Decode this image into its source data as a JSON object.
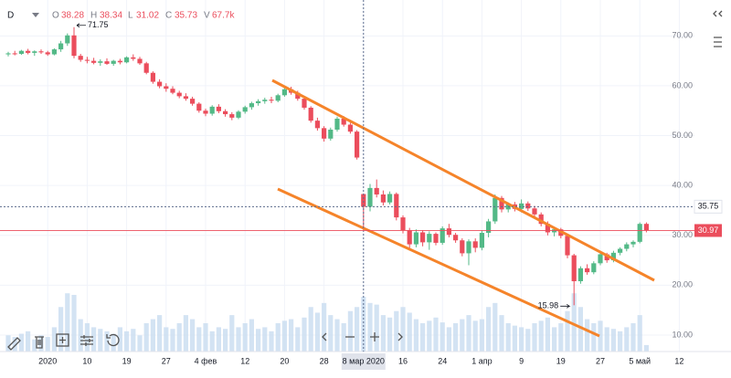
{
  "chart_data": {
    "type": "candlestick",
    "ohlc_header": {
      "symbol": "D",
      "open_label": "O",
      "open": 38.28,
      "high_label": "H",
      "high": 38.34,
      "low_label": "L",
      "low": 31.02,
      "close_label": "C",
      "close": 35.73,
      "volume_label": "V",
      "volume": {
        "value": 67.7,
        "label": "67.7k"
      }
    },
    "categories": [
      null,
      null,
      null,
      null,
      null,
      null,
      "2020",
      null,
      null,
      null,
      null,
      null,
      "10",
      null,
      null,
      null,
      null,
      null,
      "19",
      null,
      null,
      null,
      null,
      null,
      "27",
      null,
      null,
      null,
      null,
      null,
      "4 фев",
      null,
      null,
      null,
      null,
      null,
      "12",
      null,
      null,
      null,
      null,
      null,
      "20",
      null,
      null,
      null,
      null,
      null,
      "28",
      null,
      null,
      null,
      null,
      null,
      "8 мар 2020",
      null,
      null,
      null,
      null,
      null,
      "16",
      null,
      null,
      null,
      null,
      null,
      "24",
      null,
      null,
      null,
      null,
      null,
      "1 апр",
      null,
      null,
      null,
      null,
      null,
      "9",
      null,
      null,
      null,
      null,
      null,
      "19",
      null,
      null,
      null,
      null,
      null,
      "27",
      null,
      null,
      null,
      null,
      null,
      "5 май",
      null,
      null,
      null,
      null,
      null,
      "12"
    ],
    "open": [
      66.3,
      66.5,
      66.4,
      67.0,
      66.6,
      66.9,
      66.7,
      66.3,
      67.3,
      68.5,
      70.1,
      66.0,
      65.2,
      65.0,
      64.6,
      64.9,
      64.4,
      65.0,
      64.7,
      65.7,
      65.4,
      64.5,
      62.6,
      60.8,
      59.9,
      59.4,
      58.6,
      57.9,
      57.4,
      56.4,
      55.0,
      54.4,
      55.8,
      54.9,
      54.3,
      53.6,
      54.8,
      55.7,
      56.5,
      56.9,
      57.2,
      57.0,
      58.1,
      59.3,
      58.6,
      57.4,
      55.6,
      53.0,
      51.5,
      49.4,
      51.2,
      53.4,
      52.2,
      50.8,
      38.28,
      35.73,
      39.5,
      38.2,
      36.6,
      38.3,
      33.6,
      31.0,
      28.2,
      30.6,
      28.6,
      30.3,
      28.5,
      31.4,
      30.1,
      29.0,
      26.4,
      28.8,
      27.5,
      30.5,
      32.8,
      37.5,
      35.2,
      36.2,
      35.3,
      36.4,
      35.4,
      34.2,
      32.3,
      30.6,
      31.2,
      29.9,
      26.0,
      20.8,
      23.4,
      22.6,
      24.4,
      26.2,
      25.0,
      26.5,
      27.3,
      28.2,
      28.7,
      32.3,
      null,
      null,
      null,
      null,
      null
    ],
    "high": [
      66.8,
      67.0,
      67.2,
      67.4,
      67.1,
      67.3,
      67.0,
      67.5,
      69.0,
      70.5,
      71.75,
      66.4,
      65.8,
      65.6,
      65.3,
      65.5,
      65.2,
      65.4,
      65.9,
      66.3,
      65.8,
      64.8,
      62.9,
      61.3,
      60.5,
      59.9,
      59.0,
      58.5,
      57.8,
      56.7,
      55.4,
      56.1,
      56.3,
      55.3,
      54.7,
      55.1,
      56.0,
      56.8,
      57.3,
      57.6,
      57.8,
      58.4,
      59.6,
      59.8,
      59.0,
      57.7,
      55.9,
      53.6,
      51.9,
      51.6,
      53.8,
      53.9,
      52.6,
      51.1,
      38.34,
      40.3,
      41.2,
      39.0,
      38.8,
      38.6,
      34.0,
      31.5,
      31.2,
      31.0,
      30.8,
      30.6,
      31.8,
      32.3,
      30.5,
      29.4,
      29.2,
      29.4,
      31.0,
      33.3,
      38.2,
      37.9,
      36.6,
      36.7,
      37.2,
      36.8,
      35.9,
      34.6,
      32.8,
      31.6,
      31.5,
      30.2,
      26.3,
      23.8,
      24.2,
      24.8,
      26.6,
      26.5,
      26.9,
      27.6,
      28.6,
      29.0,
      32.6,
      32.6,
      null,
      null,
      null,
      null,
      null
    ],
    "low": [
      65.9,
      66.1,
      66.2,
      66.3,
      66.0,
      66.4,
      66.0,
      66.1,
      66.8,
      68.0,
      65.5,
      64.8,
      64.5,
      64.3,
      64.0,
      64.2,
      64.0,
      64.3,
      64.5,
      65.0,
      64.2,
      62.3,
      60.4,
      59.5,
      58.8,
      58.3,
      57.5,
      57.0,
      56.0,
      54.6,
      53.9,
      54.0,
      54.5,
      53.8,
      53.1,
      53.3,
      54.4,
      55.2,
      56.0,
      56.4,
      56.5,
      56.7,
      57.8,
      58.2,
      57.0,
      55.2,
      52.6,
      51.0,
      48.8,
      49.0,
      50.8,
      51.8,
      50.4,
      45.2,
      31.02,
      34.8,
      37.6,
      36.0,
      36.2,
      33.0,
      30.4,
      27.3,
      27.6,
      27.8,
      27.1,
      28.0,
      28.1,
      29.6,
      28.5,
      25.8,
      24.0,
      26.6,
      27.0,
      29.6,
      32.3,
      34.6,
      34.6,
      34.8,
      34.6,
      34.9,
      33.7,
      31.8,
      30.0,
      29.8,
      29.4,
      25.4,
      15.98,
      20.3,
      22.1,
      22.2,
      24.0,
      24.5,
      24.6,
      26.0,
      26.8,
      27.6,
      28.4,
      30.6,
      null,
      null,
      null,
      null,
      null
    ],
    "close": [
      66.5,
      66.4,
      67.0,
      66.6,
      66.9,
      66.7,
      66.3,
      67.3,
      68.5,
      70.1,
      66.0,
      65.2,
      65.0,
      64.6,
      64.9,
      64.4,
      65.0,
      64.7,
      65.7,
      65.4,
      64.5,
      62.6,
      60.8,
      59.9,
      59.4,
      58.6,
      57.9,
      57.4,
      56.4,
      55.0,
      54.4,
      55.8,
      54.9,
      54.3,
      53.6,
      54.8,
      55.7,
      56.5,
      56.9,
      57.2,
      57.0,
      58.1,
      59.3,
      58.6,
      57.4,
      55.6,
      53.0,
      51.5,
      49.4,
      51.2,
      53.4,
      52.2,
      50.8,
      45.6,
      35.73,
      39.5,
      38.2,
      36.6,
      38.3,
      33.6,
      31.0,
      28.2,
      30.6,
      28.6,
      30.3,
      28.5,
      31.4,
      30.1,
      29.0,
      26.4,
      28.8,
      27.5,
      30.5,
      32.8,
      37.5,
      35.2,
      36.2,
      35.3,
      36.4,
      35.4,
      34.2,
      32.3,
      30.6,
      31.2,
      29.9,
      26.0,
      20.8,
      23.4,
      22.6,
      24.4,
      26.2,
      25.0,
      26.5,
      27.3,
      28.2,
      28.7,
      32.3,
      30.97,
      null,
      null,
      null,
      null,
      null
    ],
    "volume": [
      20,
      18,
      22,
      25,
      15,
      20,
      18,
      30,
      55,
      72,
      70,
      40,
      35,
      30,
      28,
      25,
      22,
      30,
      25,
      28,
      20,
      35,
      40,
      45,
      30,
      28,
      35,
      45,
      40,
      30,
      35,
      25,
      30,
      28,
      45,
      30,
      35,
      40,
      28,
      30,
      25,
      35,
      38,
      40,
      30,
      42,
      55,
      48,
      60,
      45,
      40,
      35,
      50,
      55,
      67.7,
      60,
      58,
      45,
      42,
      50,
      55,
      48,
      40,
      35,
      38,
      42,
      36,
      30,
      35,
      40,
      45,
      38,
      40,
      55,
      60,
      45,
      35,
      32,
      30,
      28,
      35,
      38,
      42,
      30,
      35,
      50,
      72,
      55,
      40,
      35,
      38,
      30,
      28,
      25,
      30,
      35,
      45,
      8,
      null,
      null,
      null,
      null,
      null
    ],
    "ylim": [
      6.7,
      77.2
    ],
    "yticks": [
      {
        "value": 10,
        "label": "10.00"
      },
      {
        "value": 20,
        "label": "20.00"
      },
      {
        "value": 30,
        "label": "30.00"
      },
      {
        "value": 40,
        "label": "40.00"
      },
      {
        "value": 50,
        "label": "50.00"
      },
      {
        "value": 60,
        "label": "60.00"
      },
      {
        "value": 70,
        "label": "70.00"
      }
    ],
    "high_annotation": 71.75,
    "low_annotation": 15.98,
    "crosshair_price": 35.75,
    "last_price": 30.97,
    "up_color": "#53b987",
    "down_color": "#eb4d5c",
    "volume_color": "#c8dcf0",
    "grid": true
  }
}
